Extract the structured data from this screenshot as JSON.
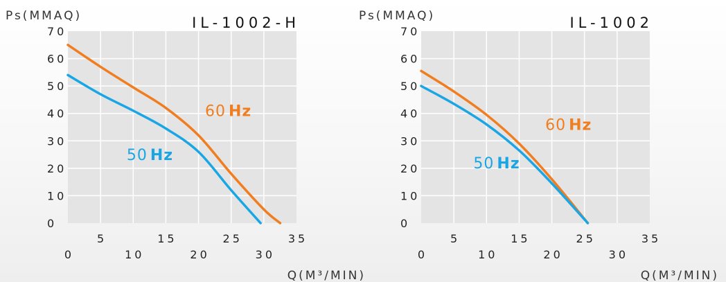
{
  "chart_data": [
    {
      "type": "line",
      "title": "IL-1002-H",
      "ylabel": "Ps(MMAQ)",
      "xlabel": "Q(M³/MIN)",
      "xlim": [
        0,
        35
      ],
      "ylim": [
        0,
        70
      ],
      "x_ticks": [
        "0",
        "5",
        "10",
        "15",
        "20",
        "25",
        "30",
        "35"
      ],
      "y_ticks": [
        "0",
        "10",
        "20",
        "30",
        "40",
        "50",
        "60",
        "70"
      ],
      "grid": true,
      "series": [
        {
          "name": "60Hz",
          "color": "#f07d1f",
          "x": [
            0,
            5,
            10,
            15,
            20,
            25,
            30,
            32.5
          ],
          "y": [
            65,
            57,
            49.5,
            42,
            32,
            18,
            5,
            0
          ]
        },
        {
          "name": "50Hz",
          "color": "#1aa6e4",
          "x": [
            0,
            5,
            10,
            15,
            20,
            25,
            29.5
          ],
          "y": [
            54,
            47,
            41,
            34.5,
            26,
            12,
            0
          ]
        }
      ],
      "annotations": [
        {
          "text_num": "60",
          "text_unit": "Hz",
          "color": "#f07d1f",
          "x": 21,
          "y": 39
        },
        {
          "text_num": "50",
          "text_unit": "Hz",
          "color": "#1aa6e4",
          "x": 9,
          "y": 23
        }
      ]
    },
    {
      "type": "line",
      "title": "IL-1002",
      "ylabel": "Ps(MMAQ)",
      "xlabel": "Q(M³/MIN)",
      "xlim": [
        0,
        35
      ],
      "ylim": [
        0,
        70
      ],
      "x_ticks": [
        "0",
        "5",
        "10",
        "15",
        "20",
        "25",
        "30",
        "35"
      ],
      "y_ticks": [
        "0",
        "10",
        "20",
        "30",
        "40",
        "50",
        "60",
        "70"
      ],
      "grid": true,
      "series": [
        {
          "name": "60Hz",
          "color": "#f07d1f",
          "x": [
            0,
            5,
            10,
            15,
            20,
            25.5
          ],
          "y": [
            55.5,
            48,
            39.5,
            29,
            16,
            0
          ]
        },
        {
          "name": "50Hz",
          "color": "#1aa6e4",
          "x": [
            0,
            5,
            10,
            15,
            20,
            25.5
          ],
          "y": [
            50,
            43.5,
            36,
            26.5,
            14.5,
            0
          ]
        }
      ],
      "annotations": [
        {
          "text_num": "60",
          "text_unit": "Hz",
          "color": "#f07d1f",
          "x": 19,
          "y": 34
        },
        {
          "text_num": "50",
          "text_unit": "Hz",
          "color": "#1aa6e4",
          "x": 8,
          "y": 20
        }
      ]
    }
  ]
}
